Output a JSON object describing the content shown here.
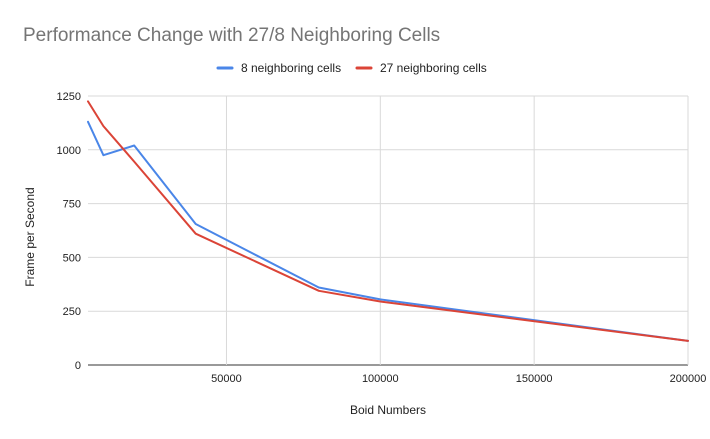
{
  "chart_data": {
    "type": "line",
    "title": "Performance Change with 27/8 Neighboring Cells",
    "xlabel": "Boid Numbers",
    "ylabel": "Frame per Second",
    "xlim": [
      5000,
      200000
    ],
    "ylim": [
      0,
      1250
    ],
    "xticks": [
      50000,
      100000,
      150000,
      200000
    ],
    "yticks": [
      0,
      250,
      500,
      750,
      1000,
      1250
    ],
    "grid": true,
    "legend_position": "top",
    "series": [
      {
        "name": "8 neighboring cells",
        "color": "#4a86e8",
        "x": [
          5000,
          10000,
          20000,
          40000,
          80000,
          100000,
          200000
        ],
        "y": [
          1130,
          975,
          1020,
          655,
          360,
          305,
          112
        ]
      },
      {
        "name": "27 neighboring cells",
        "color": "#db4437",
        "x": [
          5000,
          10000,
          20000,
          40000,
          80000,
          100000,
          200000
        ],
        "y": [
          1225,
          1110,
          945,
          610,
          345,
          295,
          112
        ]
      }
    ]
  }
}
